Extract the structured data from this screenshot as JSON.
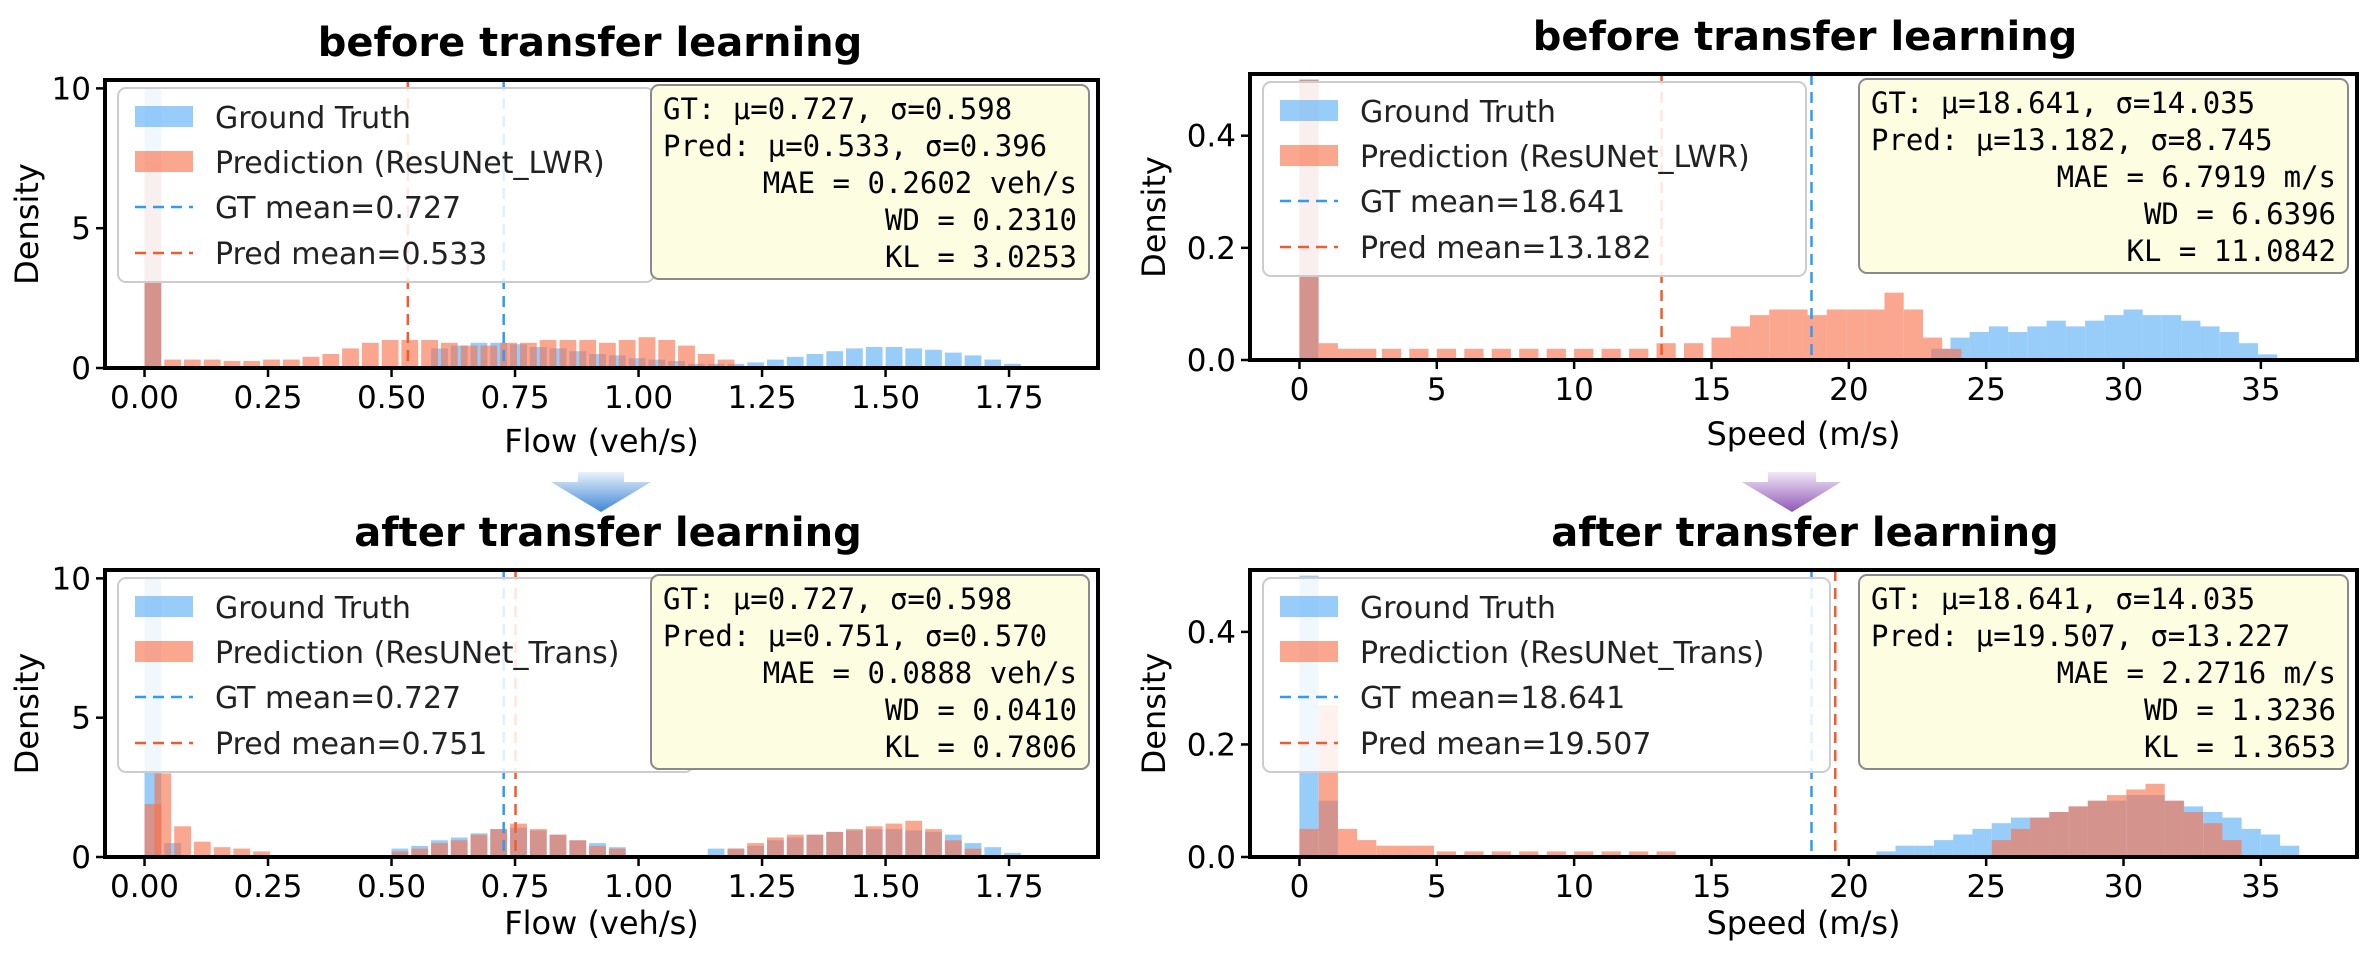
{
  "colors": {
    "ground_truth": "#5aaef5",
    "prediction": "#f9704a",
    "gt_mean_line": "#2f9bf2",
    "pred_mean_line": "#f25c2c",
    "stats_box": "#fdfde2",
    "arrow_left": "#3f86d6",
    "arrow_right": "#8f57b7"
  },
  "sections": {
    "top_left_title": "before transfer learning",
    "top_right_title": "before transfer learning",
    "bottom_left_title": "after transfer learning",
    "bottom_right_title": "after transfer learning"
  },
  "chart_data": [
    {
      "type": "histogram",
      "title": "before transfer learning",
      "xlabel": "Flow (veh/s)",
      "ylabel": "Density",
      "xlim": [
        -0.08,
        1.93
      ],
      "ylim": [
        0,
        10.3
      ],
      "xticks": [
        "0.00",
        "0.25",
        "0.50",
        "0.75",
        "1.00",
        "1.25",
        "1.50",
        "1.75"
      ],
      "yticks": [
        "0",
        "5",
        "10"
      ],
      "bin_width": 0.034,
      "legend_position": "upper-left",
      "legend": [
        "Ground Truth",
        "Prediction (ResUNet_LWR)",
        "GT mean=0.727",
        "Pred mean=0.533"
      ],
      "gt_mean": 0.727,
      "pred_mean": 0.533,
      "stats": [
        "GT:   μ=0.727, σ=0.598",
        "Pred: μ=0.533, σ=0.396",
        "MAE = 0.2602 veh/s",
        "WD = 0.2310",
        "KL = 3.0253"
      ],
      "series": [
        {
          "name": "Ground Truth",
          "bins": [
            [
              0.0,
              10.0
            ],
            [
              0.58,
              0.7
            ],
            [
              0.62,
              0.8
            ],
            [
              0.66,
              0.9
            ],
            [
              0.7,
              0.9
            ],
            [
              0.74,
              0.85
            ],
            [
              0.78,
              0.75
            ],
            [
              0.82,
              0.7
            ],
            [
              0.86,
              0.6
            ],
            [
              0.9,
              0.5
            ],
            [
              0.94,
              0.45
            ],
            [
              0.98,
              0.35
            ],
            [
              1.02,
              0.3
            ],
            [
              1.06,
              0.25
            ],
            [
              1.1,
              0.15
            ],
            [
              1.14,
              0.15
            ],
            [
              1.18,
              0.15
            ],
            [
              1.22,
              0.2
            ],
            [
              1.26,
              0.3
            ],
            [
              1.3,
              0.4
            ],
            [
              1.34,
              0.5
            ],
            [
              1.38,
              0.6
            ],
            [
              1.42,
              0.7
            ],
            [
              1.46,
              0.75
            ],
            [
              1.5,
              0.75
            ],
            [
              1.54,
              0.7
            ],
            [
              1.58,
              0.65
            ],
            [
              1.62,
              0.55
            ],
            [
              1.66,
              0.45
            ],
            [
              1.7,
              0.3
            ],
            [
              1.74,
              0.15
            ],
            [
              1.78,
              0.07
            ]
          ]
        },
        {
          "name": "Prediction (ResUNet_LWR)",
          "bins": [
            [
              0.0,
              7.4
            ],
            [
              0.04,
              0.3
            ],
            [
              0.08,
              0.3
            ],
            [
              0.12,
              0.3
            ],
            [
              0.16,
              0.25
            ],
            [
              0.2,
              0.25
            ],
            [
              0.24,
              0.3
            ],
            [
              0.28,
              0.3
            ],
            [
              0.32,
              0.4
            ],
            [
              0.36,
              0.5
            ],
            [
              0.4,
              0.7
            ],
            [
              0.44,
              0.9
            ],
            [
              0.48,
              1.0
            ],
            [
              0.52,
              1.0
            ],
            [
              0.56,
              1.0
            ],
            [
              0.6,
              0.9
            ],
            [
              0.64,
              0.8
            ],
            [
              0.68,
              0.8
            ],
            [
              0.72,
              0.9
            ],
            [
              0.76,
              0.9
            ],
            [
              0.8,
              1.0
            ],
            [
              0.84,
              1.0
            ],
            [
              0.88,
              1.0
            ],
            [
              0.92,
              0.9
            ],
            [
              0.96,
              1.0
            ],
            [
              1.0,
              1.1
            ],
            [
              1.04,
              1.0
            ],
            [
              1.08,
              0.8
            ],
            [
              1.12,
              0.5
            ],
            [
              1.16,
              0.3
            ]
          ]
        }
      ]
    },
    {
      "type": "histogram",
      "title": "before transfer learning",
      "xlabel": "Speed (m/s)",
      "ylabel": "Density",
      "xlim": [
        -1.8,
        38.5
      ],
      "ylim": [
        0,
        0.51
      ],
      "xticks": [
        "0",
        "5",
        "10",
        "15",
        "20",
        "25",
        "30",
        "35"
      ],
      "yticks": [
        "0.0",
        "0.2",
        "0.4"
      ],
      "bin_width": 0.7,
      "legend_position": "upper-left",
      "legend": [
        "Ground Truth",
        "Prediction (ResUNet_LWR)",
        "GT mean=18.641",
        "Pred mean=13.182"
      ],
      "gt_mean": 18.641,
      "pred_mean": 13.182,
      "stats": [
        "GT:   μ=18.641, σ=14.035",
        "Pred: μ=13.182, σ=8.745",
        "MAE = 6.7919 m/s",
        "WD = 6.6396",
        "KL = 11.0842"
      ],
      "series": [
        {
          "name": "Ground Truth",
          "bins": [
            [
              0.0,
              0.5
            ],
            [
              23.0,
              0.02
            ],
            [
              23.7,
              0.04
            ],
            [
              24.4,
              0.05
            ],
            [
              25.1,
              0.06
            ],
            [
              25.8,
              0.05
            ],
            [
              26.5,
              0.06
            ],
            [
              27.2,
              0.07
            ],
            [
              27.9,
              0.06
            ],
            [
              28.6,
              0.07
            ],
            [
              29.3,
              0.08
            ],
            [
              30.0,
              0.09
            ],
            [
              30.7,
              0.08
            ],
            [
              31.4,
              0.08
            ],
            [
              32.1,
              0.07
            ],
            [
              32.8,
              0.06
            ],
            [
              33.5,
              0.05
            ],
            [
              34.2,
              0.03
            ],
            [
              34.9,
              0.01
            ]
          ]
        },
        {
          "name": "Prediction (ResUNet_LWR)",
          "bins": [
            [
              0.0,
              0.5
            ],
            [
              0.7,
              0.03
            ],
            [
              1.4,
              0.02
            ],
            [
              2.1,
              0.02
            ],
            [
              3.0,
              0.02
            ],
            [
              4.0,
              0.02
            ],
            [
              5.0,
              0.02
            ],
            [
              6.0,
              0.02
            ],
            [
              7.0,
              0.02
            ],
            [
              8.0,
              0.02
            ],
            [
              9.0,
              0.02
            ],
            [
              10.0,
              0.02
            ],
            [
              11.0,
              0.02
            ],
            [
              12.0,
              0.02
            ],
            [
              13.0,
              0.03
            ],
            [
              14.0,
              0.03
            ],
            [
              15.0,
              0.04
            ],
            [
              15.7,
              0.06
            ],
            [
              16.4,
              0.08
            ],
            [
              17.1,
              0.09
            ],
            [
              17.8,
              0.09
            ],
            [
              18.5,
              0.08
            ],
            [
              19.2,
              0.09
            ],
            [
              19.9,
              0.09
            ],
            [
              20.6,
              0.09
            ],
            [
              21.3,
              0.12
            ],
            [
              22.0,
              0.09
            ],
            [
              22.7,
              0.04
            ],
            [
              23.4,
              0.02
            ]
          ]
        }
      ]
    },
    {
      "type": "histogram",
      "title": "after transfer learning",
      "xlabel": "Flow (veh/s)",
      "ylabel": "Density",
      "xlim": [
        -0.08,
        1.93
      ],
      "ylim": [
        0,
        10.3
      ],
      "xticks": [
        "0.00",
        "0.25",
        "0.50",
        "0.75",
        "1.00",
        "1.25",
        "1.50",
        "1.75"
      ],
      "yticks": [
        "0",
        "5",
        "10"
      ],
      "bin_width": 0.034,
      "legend_position": "upper-left",
      "legend": [
        "Ground Truth",
        "Prediction (ResUNet_Trans)",
        "GT mean=0.727",
        "Pred mean=0.751"
      ],
      "gt_mean": 0.727,
      "pred_mean": 0.751,
      "stats": [
        "GT:   μ=0.727, σ=0.598",
        "Pred: μ=0.751, σ=0.570",
        "MAE = 0.0888 veh/s",
        "WD = 0.0410",
        "KL = 0.7806"
      ],
      "series": [
        {
          "name": "Ground Truth",
          "bins": [
            [
              0.0,
              10.0
            ],
            [
              0.04,
              0.5
            ],
            [
              0.5,
              0.3
            ],
            [
              0.54,
              0.4
            ],
            [
              0.58,
              0.6
            ],
            [
              0.62,
              0.7
            ],
            [
              0.66,
              0.85
            ],
            [
              0.7,
              1.0
            ],
            [
              0.74,
              1.05
            ],
            [
              0.78,
              0.95
            ],
            [
              0.82,
              0.8
            ],
            [
              0.86,
              0.6
            ],
            [
              0.9,
              0.5
            ],
            [
              0.94,
              0.35
            ],
            [
              1.14,
              0.3
            ],
            [
              1.18,
              0.3
            ],
            [
              1.22,
              0.4
            ],
            [
              1.26,
              0.6
            ],
            [
              1.3,
              0.7
            ],
            [
              1.34,
              0.8
            ],
            [
              1.38,
              0.9
            ],
            [
              1.42,
              0.95
            ],
            [
              1.46,
              1.0
            ],
            [
              1.5,
              1.0
            ],
            [
              1.54,
              0.95
            ],
            [
              1.58,
              0.9
            ],
            [
              1.62,
              0.8
            ],
            [
              1.66,
              0.5
            ],
            [
              1.7,
              0.35
            ],
            [
              1.74,
              0.15
            ]
          ]
        },
        {
          "name": "Prediction (ResUNet_Trans)",
          "bins": [
            [
              0.0,
              1.9
            ],
            [
              0.02,
              3.0
            ],
            [
              0.06,
              1.1
            ],
            [
              0.1,
              0.55
            ],
            [
              0.14,
              0.35
            ],
            [
              0.18,
              0.3
            ],
            [
              0.22,
              0.2
            ],
            [
              0.5,
              0.2
            ],
            [
              0.54,
              0.3
            ],
            [
              0.58,
              0.5
            ],
            [
              0.62,
              0.6
            ],
            [
              0.66,
              0.8
            ],
            [
              0.7,
              1.0
            ],
            [
              0.74,
              1.2
            ],
            [
              0.78,
              1.0
            ],
            [
              0.82,
              0.8
            ],
            [
              0.86,
              0.6
            ],
            [
              0.9,
              0.4
            ],
            [
              0.94,
              0.3
            ],
            [
              1.18,
              0.3
            ],
            [
              1.22,
              0.5
            ],
            [
              1.26,
              0.7
            ],
            [
              1.3,
              0.8
            ],
            [
              1.34,
              0.8
            ],
            [
              1.38,
              0.9
            ],
            [
              1.42,
              1.0
            ],
            [
              1.46,
              1.1
            ],
            [
              1.5,
              1.2
            ],
            [
              1.54,
              1.3
            ],
            [
              1.58,
              1.0
            ],
            [
              1.62,
              0.6
            ],
            [
              1.66,
              0.3
            ]
          ]
        }
      ]
    },
    {
      "type": "histogram",
      "title": "after transfer learning",
      "xlabel": "Speed (m/s)",
      "ylabel": "Density",
      "xlim": [
        -1.8,
        38.5
      ],
      "ylim": [
        0,
        0.51
      ],
      "xticks": [
        "0",
        "5",
        "10",
        "15",
        "20",
        "25",
        "30",
        "35"
      ],
      "yticks": [
        "0.0",
        "0.2",
        "0.4"
      ],
      "bin_width": 0.7,
      "legend_position": "upper-left",
      "legend": [
        "Ground Truth",
        "Prediction (ResUNet_Trans)",
        "GT mean=18.641",
        "Pred mean=19.507"
      ],
      "gt_mean": 18.641,
      "pred_mean": 19.507,
      "stats": [
        "GT:   μ=18.641, σ=14.035",
        "Pred: μ=19.507, σ=13.227",
        "MAE = 2.2716 m/s",
        "WD = 1.3236",
        "KL = 1.3653"
      ],
      "series": [
        {
          "name": "Ground Truth",
          "bins": [
            [
              0.0,
              0.5
            ],
            [
              0.7,
              0.1
            ],
            [
              21.0,
              0.01
            ],
            [
              21.7,
              0.02
            ],
            [
              22.4,
              0.02
            ],
            [
              23.1,
              0.03
            ],
            [
              23.8,
              0.04
            ],
            [
              24.5,
              0.05
            ],
            [
              25.2,
              0.06
            ],
            [
              25.9,
              0.07
            ],
            [
              26.6,
              0.07
            ],
            [
              27.3,
              0.08
            ],
            [
              28.0,
              0.09
            ],
            [
              28.7,
              0.1
            ],
            [
              29.4,
              0.1
            ],
            [
              30.1,
              0.11
            ],
            [
              30.8,
              0.11
            ],
            [
              31.5,
              0.1
            ],
            [
              32.2,
              0.09
            ],
            [
              32.9,
              0.08
            ],
            [
              33.6,
              0.07
            ],
            [
              34.3,
              0.05
            ],
            [
              35.0,
              0.04
            ],
            [
              35.7,
              0.02
            ]
          ]
        },
        {
          "name": "Prediction (ResUNet_Trans)",
          "bins": [
            [
              0.0,
              0.05
            ],
            [
              0.7,
              0.27
            ],
            [
              1.4,
              0.05
            ],
            [
              2.1,
              0.03
            ],
            [
              2.8,
              0.02
            ],
            [
              3.5,
              0.02
            ],
            [
              4.2,
              0.02
            ],
            [
              5.0,
              0.01
            ],
            [
              6.0,
              0.01
            ],
            [
              7.0,
              0.01
            ],
            [
              8.0,
              0.01
            ],
            [
              9.0,
              0.01
            ],
            [
              10.0,
              0.01
            ],
            [
              11.0,
              0.01
            ],
            [
              12.0,
              0.01
            ],
            [
              13.0,
              0.01
            ],
            [
              25.2,
              0.03
            ],
            [
              25.9,
              0.05
            ],
            [
              26.6,
              0.07
            ],
            [
              27.3,
              0.08
            ],
            [
              28.0,
              0.09
            ],
            [
              28.7,
              0.1
            ],
            [
              29.4,
              0.11
            ],
            [
              30.1,
              0.12
            ],
            [
              30.8,
              0.13
            ],
            [
              31.5,
              0.1
            ],
            [
              32.2,
              0.08
            ],
            [
              32.9,
              0.06
            ],
            [
              33.6,
              0.03
            ]
          ]
        }
      ]
    }
  ]
}
